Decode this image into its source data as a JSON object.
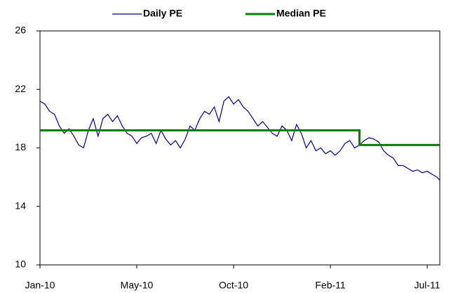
{
  "chart_data": {
    "type": "line",
    "xlim": [
      0,
      413
    ],
    "xticks": [
      {
        "value": 0,
        "label": "Jan-10"
      },
      {
        "value": 100,
        "label": "May-10"
      },
      {
        "value": 200,
        "label": "Oct-10"
      },
      {
        "value": 300,
        "label": "Feb-11"
      },
      {
        "value": 400,
        "label": "Jul-11"
      }
    ],
    "ylim": [
      10,
      26
    ],
    "yticks": [
      10,
      14,
      18,
      22,
      26
    ],
    "legend": "top",
    "series": [
      {
        "name": "Daily PE",
        "color": "#000080",
        "width": 1.2,
        "x": [
          0,
          5,
          10,
          15,
          20,
          25,
          30,
          35,
          40,
          45,
          50,
          55,
          60,
          65,
          70,
          75,
          80,
          85,
          90,
          95,
          100,
          105,
          110,
          115,
          120,
          125,
          130,
          135,
          140,
          145,
          150,
          155,
          160,
          165,
          170,
          175,
          180,
          185,
          190,
          195,
          200,
          205,
          210,
          215,
          220,
          225,
          230,
          235,
          240,
          245,
          250,
          255,
          260,
          265,
          270,
          275,
          280,
          285,
          290,
          295,
          300,
          305,
          310,
          315,
          320,
          325,
          330,
          335,
          340,
          345,
          350,
          355,
          360,
          365,
          370,
          375,
          380,
          385,
          390,
          395,
          400,
          405,
          410,
          413
        ],
        "values": [
          21.2,
          21.0,
          20.5,
          20.3,
          19.5,
          19.0,
          19.3,
          18.8,
          18.2,
          18.0,
          19.2,
          20.0,
          18.8,
          20.0,
          20.3,
          19.8,
          20.2,
          19.5,
          19.0,
          18.8,
          18.3,
          18.7,
          18.8,
          19.0,
          18.3,
          19.2,
          18.6,
          18.2,
          18.5,
          18.0,
          18.6,
          19.5,
          19.2,
          20.0,
          20.5,
          20.3,
          20.8,
          19.8,
          21.2,
          21.5,
          21.0,
          21.3,
          20.8,
          20.5,
          20.0,
          19.5,
          19.8,
          19.4,
          19.0,
          18.8,
          19.5,
          19.2,
          18.5,
          19.6,
          19.0,
          18.0,
          18.5,
          17.8,
          18.0,
          17.6,
          17.8,
          17.5,
          17.8,
          18.3,
          18.5,
          18.0,
          18.2,
          18.5,
          18.7,
          18.6,
          18.4,
          17.8,
          17.5,
          17.3,
          16.8,
          16.8,
          16.6,
          16.4,
          16.5,
          16.3,
          16.4,
          16.2,
          16.0,
          15.8
        ]
      },
      {
        "name": "Median PE",
        "color": "#008000",
        "width": 3,
        "x": [
          0,
          330,
          330,
          413
        ],
        "values": [
          19.2,
          19.2,
          18.2,
          18.2
        ]
      }
    ]
  }
}
